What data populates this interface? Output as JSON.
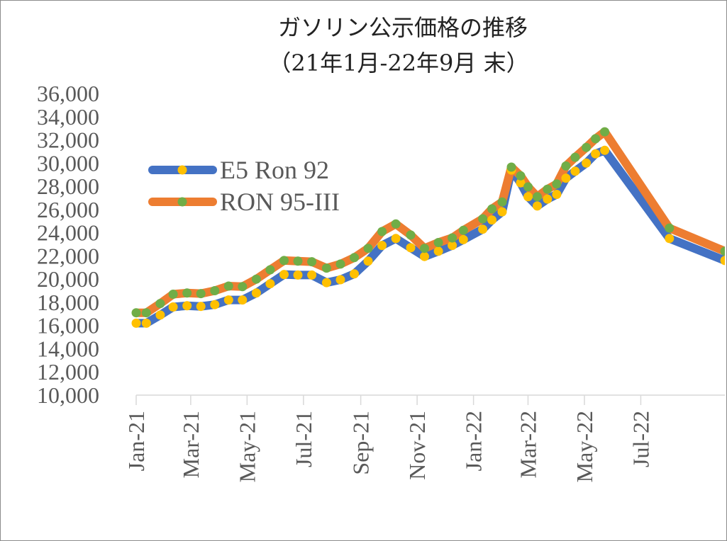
{
  "chart_data": {
    "type": "line",
    "title_line1": "ガソリン公示価格の推移",
    "title_line2": "（21年1月-22年9月 末）",
    "xlabel": "",
    "ylabel": "",
    "ylim": [
      10000,
      36000
    ],
    "y_ticks": [
      "10,000",
      "12,000",
      "14,000",
      "16,000",
      "18,000",
      "20,000",
      "22,000",
      "24,000",
      "26,000",
      "28,000",
      "30,000",
      "32,000",
      "34,000",
      "36,000"
    ],
    "x_range": [
      "2021-01-01",
      "2022-09-30"
    ],
    "x_ticks": [
      {
        "date": "2021-01-01",
        "label": "Jan-21"
      },
      {
        "date": "2021-03-01",
        "label": "Mar-21"
      },
      {
        "date": "2021-05-01",
        "label": "May-21"
      },
      {
        "date": "2021-07-01",
        "label": "Jul-21"
      },
      {
        "date": "2021-09-01",
        "label": "Sep-21"
      },
      {
        "date": "2021-11-01",
        "label": "Nov-21"
      },
      {
        "date": "2022-01-01",
        "label": "Jan-22"
      },
      {
        "date": "2022-03-01",
        "label": "Mar-22"
      },
      {
        "date": "2022-05-01",
        "label": "May-22"
      },
      {
        "date": "2022-07-01",
        "label": "Jul-22"
      }
    ],
    "legend_position": "upper-left",
    "series": [
      {
        "name": "E5 Ron 92",
        "color": "#4472c4",
        "marker_color": "#ffc000",
        "points": [
          [
            "2021-01-01",
            16200
          ],
          [
            "2021-01-12",
            16200
          ],
          [
            "2021-01-27",
            16900
          ],
          [
            "2021-02-10",
            17600
          ],
          [
            "2021-02-25",
            17700
          ],
          [
            "2021-03-12",
            17650
          ],
          [
            "2021-03-27",
            17800
          ],
          [
            "2021-04-11",
            18200
          ],
          [
            "2021-04-26",
            18200
          ],
          [
            "2021-05-11",
            18800
          ],
          [
            "2021-05-26",
            19600
          ],
          [
            "2021-06-10",
            20400
          ],
          [
            "2021-06-25",
            20350
          ],
          [
            "2021-07-10",
            20350
          ],
          [
            "2021-07-26",
            19700
          ],
          [
            "2021-08-10",
            19950
          ],
          [
            "2021-08-25",
            20450
          ],
          [
            "2021-09-09",
            21550
          ],
          [
            "2021-09-24",
            22900
          ],
          [
            "2021-10-09",
            23500
          ],
          [
            "2021-10-25",
            22700
          ],
          [
            "2021-11-09",
            21950
          ],
          [
            "2021-11-24",
            22400
          ],
          [
            "2021-12-09",
            22900
          ],
          [
            "2021-12-21",
            23400
          ],
          [
            "2022-01-11",
            24300
          ],
          [
            "2022-01-21",
            25100
          ],
          [
            "2022-02-01",
            25800
          ],
          [
            "2022-02-11",
            29400
          ],
          [
            "2022-02-21",
            28300
          ],
          [
            "2022-03-01",
            27100
          ],
          [
            "2022-03-11",
            26300
          ],
          [
            "2022-03-22",
            26900
          ],
          [
            "2022-04-01",
            27300
          ],
          [
            "2022-04-11",
            28700
          ],
          [
            "2022-04-21",
            29300
          ],
          [
            "2022-05-03",
            30000
          ],
          [
            "2022-05-13",
            30800
          ],
          [
            "2022-05-23",
            31100
          ],
          [
            "2022-08-01",
            23500
          ],
          [
            "2022-09-30",
            21600
          ]
        ]
      },
      {
        "name": "RON 95-III",
        "color": "#ed7d31",
        "marker_color": "#70ad47",
        "points": [
          [
            "2021-01-01",
            17100
          ],
          [
            "2021-01-12",
            17100
          ],
          [
            "2021-01-27",
            17900
          ],
          [
            "2021-02-10",
            18700
          ],
          [
            "2021-02-25",
            18800
          ],
          [
            "2021-03-12",
            18750
          ],
          [
            "2021-03-27",
            19000
          ],
          [
            "2021-04-11",
            19400
          ],
          [
            "2021-04-26",
            19350
          ],
          [
            "2021-05-11",
            20000
          ],
          [
            "2021-05-26",
            20800
          ],
          [
            "2021-06-10",
            21600
          ],
          [
            "2021-06-25",
            21550
          ],
          [
            "2021-07-10",
            21500
          ],
          [
            "2021-07-26",
            20950
          ],
          [
            "2021-08-10",
            21300
          ],
          [
            "2021-08-25",
            21850
          ],
          [
            "2021-09-09",
            22650
          ],
          [
            "2021-09-24",
            24100
          ],
          [
            "2021-10-09",
            24750
          ],
          [
            "2021-10-25",
            23800
          ],
          [
            "2021-11-09",
            22650
          ],
          [
            "2021-11-24",
            23150
          ],
          [
            "2021-12-09",
            23550
          ],
          [
            "2021-12-21",
            24200
          ],
          [
            "2022-01-11",
            25200
          ],
          [
            "2022-01-21",
            26050
          ],
          [
            "2022-02-01",
            26650
          ],
          [
            "2022-02-11",
            29650
          ],
          [
            "2022-02-21",
            28900
          ],
          [
            "2022-03-01",
            27950
          ],
          [
            "2022-03-11",
            27100
          ],
          [
            "2022-03-22",
            27750
          ],
          [
            "2022-04-01",
            28200
          ],
          [
            "2022-04-11",
            29750
          ],
          [
            "2022-04-21",
            30500
          ],
          [
            "2022-05-03",
            31350
          ],
          [
            "2022-05-13",
            32100
          ],
          [
            "2022-05-23",
            32700
          ],
          [
            "2022-08-01",
            24400
          ],
          [
            "2022-09-30",
            22400
          ]
        ]
      }
    ]
  }
}
